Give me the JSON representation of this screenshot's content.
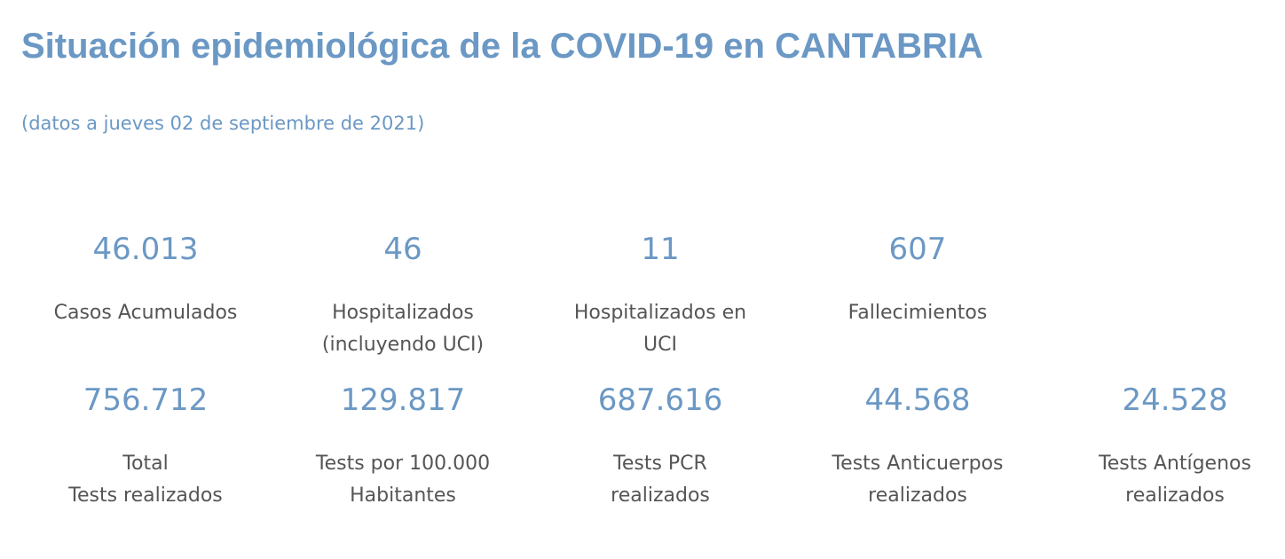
{
  "colors": {
    "accent": "#6b98c4",
    "label_text": "#555555",
    "background": "#ffffff"
  },
  "header": {
    "title": "Situación epidemiológica de la COVID-19 en CANTABRIA",
    "subtitle": "(datos a jueves 02 de septiembre de 2021)"
  },
  "row1": [
    {
      "value": "46.013",
      "label": "Casos Acumulados"
    },
    {
      "value": "46",
      "label": "Hospitalizados\n(incluyendo UCI)"
    },
    {
      "value": "11",
      "label": "Hospitalizados en\nUCI"
    },
    {
      "value": "607",
      "label": "Fallecimientos"
    }
  ],
  "row2": [
    {
      "value": "756.712",
      "label": "Total\nTests realizados"
    },
    {
      "value": "129.817",
      "label": "Tests por 100.000\nHabitantes"
    },
    {
      "value": "687.616",
      "label": " Tests PCR\nrealizados"
    },
    {
      "value": "44.568",
      "label": "Tests Anticuerpos\nrealizados"
    },
    {
      "value": "24.528",
      "label": "Tests Antígenos\nrealizados"
    }
  ]
}
